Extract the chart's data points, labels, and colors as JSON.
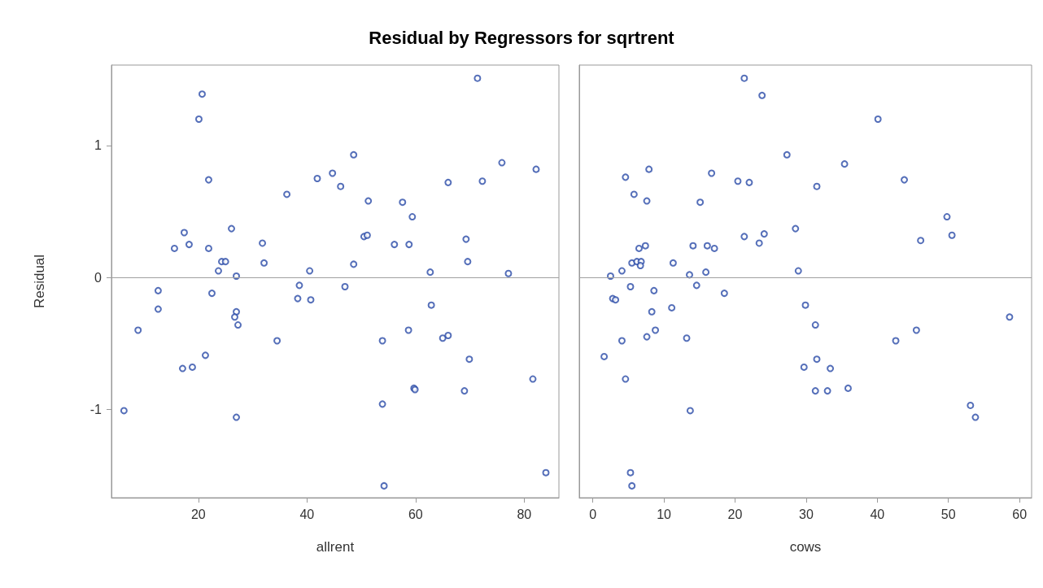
{
  "chart_data": [
    {
      "type": "scatter",
      "title": "Residual by Regressors for sqrtrent",
      "xlabel": "allrent",
      "ylabel": "Residual",
      "xlim": [
        4,
        86.4
      ],
      "xticks": [
        20,
        40,
        60,
        80
      ],
      "ylim": [
        -1.67,
        1.61
      ],
      "yticks": [
        -1,
        0,
        1
      ],
      "marker": "circle",
      "grid": false,
      "ref_lines": [
        {
          "axis": "y",
          "value": 0,
          "color": "#a0a0a0"
        }
      ],
      "series": [
        {
          "color": "#2a4ba8",
          "x": [
            20.7,
            20.1,
            21.9,
            36.3,
            41.9,
            44.7,
            46.2,
            48.6,
            51.3,
            57.6,
            59.4,
            66.0,
            71.4,
            72.3,
            75.9,
            82.2,
            17.4,
            15.6,
            18.3,
            21.9,
            26.1,
            31.8,
            50.5,
            51.1,
            56.1,
            58.8,
            69.3,
            24.3,
            25.0,
            23.7,
            27.0,
            32.1,
            40.5,
            48.6,
            62.7,
            69.6,
            77.1,
            12.6,
            12.6,
            8.9,
            6.3,
            22.5,
            21.3,
            17.1,
            18.9,
            27.0,
            26.7,
            27.3,
            27.0,
            34.5,
            38.6,
            38.3,
            40.7,
            47.0,
            53.9,
            53.9,
            54.2,
            58.7,
            62.9,
            65.0,
            66.0,
            69.9,
            59.7,
            59.9,
            69.0,
            81.6,
            84.0
          ],
          "values": [
            1.39,
            1.2,
            0.74,
            0.63,
            0.75,
            0.79,
            0.69,
            0.93,
            0.58,
            0.57,
            0.46,
            0.72,
            1.51,
            0.73,
            0.87,
            0.82,
            0.34,
            0.22,
            0.25,
            0.22,
            0.37,
            0.26,
            0.31,
            0.32,
            0.25,
            0.25,
            0.29,
            0.12,
            0.12,
            0.05,
            0.01,
            0.11,
            0.05,
            0.1,
            0.04,
            0.12,
            0.03,
            -0.1,
            -0.24,
            -0.4,
            -1.01,
            -0.12,
            -0.59,
            -0.69,
            -0.68,
            -0.26,
            -0.3,
            -0.36,
            -1.06,
            -0.48,
            -0.06,
            -0.16,
            -0.17,
            -0.07,
            -0.48,
            -0.96,
            -1.58,
            -0.4,
            -0.21,
            -0.46,
            -0.44,
            -0.62,
            -0.84,
            -0.85,
            -0.86,
            -0.77,
            -1.48
          ]
        }
      ]
    },
    {
      "type": "scatter",
      "xlabel": "cows",
      "xlim": [
        -1.9,
        61.7
      ],
      "xticks": [
        0,
        10,
        20,
        30,
        40,
        50,
        60
      ],
      "ylim": [
        -1.67,
        1.61
      ],
      "yticks": [
        -1,
        0,
        1
      ],
      "tick_labels": "x",
      "marker": "circle",
      "grid": false,
      "ref_lines": [
        {
          "axis": "y",
          "value": 0,
          "color": "#a0a0a0"
        }
      ],
      "series": [
        {
          "color": "#2a4ba8",
          "x": [
            21.3,
            23.8,
            40.1,
            27.3,
            35.4,
            7.9,
            4.6,
            16.7,
            20.4,
            22.0,
            31.5,
            43.8,
            5.8,
            7.6,
            15.1,
            49.8,
            50.5,
            46.1,
            28.5,
            21.3,
            24.1,
            23.4,
            7.4,
            6.5,
            14.1,
            16.1,
            17.1,
            5.5,
            6.2,
            6.8,
            6.7,
            11.3,
            4.1,
            2.5,
            13.6,
            15.9,
            28.9,
            5.3,
            8.6,
            14.6,
            18.5,
            2.8,
            3.2,
            8.3,
            11.1,
            29.9,
            58.6,
            31.3,
            45.5,
            42.6,
            8.8,
            7.6,
            4.1,
            13.2,
            1.6,
            31.5,
            29.7,
            33.4,
            4.6,
            31.3,
            33.0,
            35.9,
            13.7,
            53.1,
            53.8,
            5.3,
            5.5
          ],
          "values": [
            1.51,
            1.38,
            1.2,
            0.93,
            0.86,
            0.82,
            0.76,
            0.79,
            0.73,
            0.72,
            0.69,
            0.74,
            0.63,
            0.58,
            0.57,
            0.46,
            0.32,
            0.28,
            0.37,
            0.31,
            0.33,
            0.26,
            0.24,
            0.22,
            0.24,
            0.24,
            0.22,
            0.11,
            0.12,
            0.12,
            0.09,
            0.11,
            0.05,
            0.01,
            0.02,
            0.04,
            0.05,
            -0.07,
            -0.1,
            -0.06,
            -0.12,
            -0.16,
            -0.17,
            -0.26,
            -0.23,
            -0.21,
            -0.3,
            -0.36,
            -0.4,
            -0.48,
            -0.4,
            -0.45,
            -0.48,
            -0.46,
            -0.6,
            -0.62,
            -0.68,
            -0.69,
            -0.77,
            -0.86,
            -0.86,
            -0.84,
            -1.01,
            -0.97,
            -1.06,
            -1.48,
            -1.58
          ]
        }
      ]
    }
  ]
}
